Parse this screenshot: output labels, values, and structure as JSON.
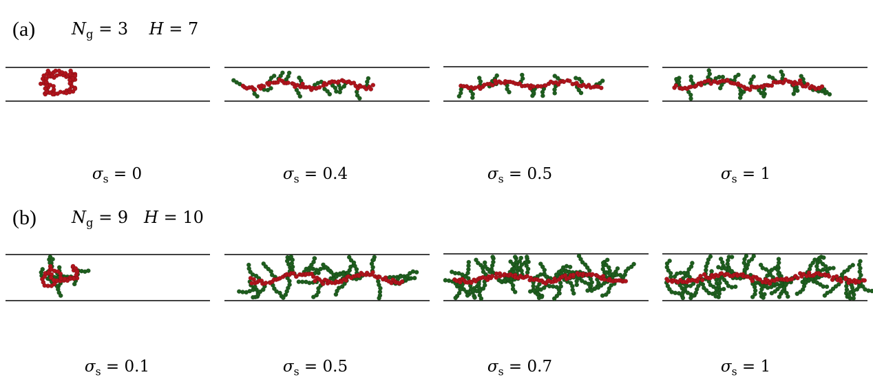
{
  "panels": [
    {
      "label": "(a)",
      "ng_symbol": "N",
      "ng_sub": "g",
      "ng_value": "3",
      "h_symbol": "H",
      "h_value": "7",
      "sigma_symbol": "σ",
      "sigma_sub": "s",
      "sigma_values": [
        "0",
        "0.4",
        "0.5",
        "1"
      ]
    },
    {
      "label": "(b)",
      "ng_symbol": "N",
      "ng_sub": "g",
      "ng_value": "9",
      "h_symbol": "H",
      "h_value": "10",
      "sigma_symbol": "σ",
      "sigma_sub": "s",
      "sigma_values": [
        "0.1",
        "0.5",
        "0.7",
        "1"
      ]
    }
  ],
  "colors": {
    "backbone": "#b0141c",
    "graft": "#1e5e1e",
    "wall": "#000000"
  }
}
